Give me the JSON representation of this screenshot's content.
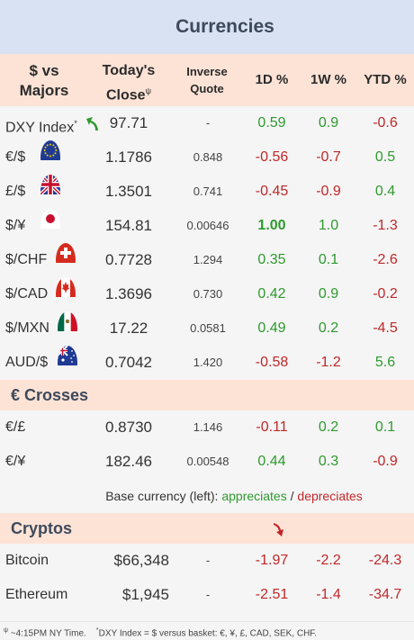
{
  "title": "Currencies",
  "header": {
    "majors_line1": "$ vs",
    "majors_line2": "Majors",
    "close_line1": "Today's",
    "close_line2": "Close",
    "close_sup": "ψ",
    "inverse_line1": "Inverse",
    "inverse_line2": "Quote",
    "d1": "1D %",
    "w1": "1W %",
    "ytd": "YTD %"
  },
  "majors": [
    {
      "label": "DXY Index",
      "sup": "*",
      "icon": "trend-up-arrow-icon",
      "close": "97.71",
      "inverse": "-",
      "d1": "0.59",
      "w1": "0.9",
      "ytd": "-0.6",
      "d1_dir": "pos",
      "w1_dir": "pos",
      "ytd_dir": "neg"
    },
    {
      "label": "€/$",
      "icon": "eu-flag-icon",
      "close": "1.1786",
      "inverse": "0.848",
      "d1": "-0.56",
      "w1": "-0.7",
      "ytd": "0.5",
      "d1_dir": "neg",
      "w1_dir": "neg",
      "ytd_dir": "pos"
    },
    {
      "label": "£/$",
      "icon": "uk-flag-icon",
      "close": "1.3501",
      "inverse": "0.741",
      "d1": "-0.45",
      "w1": "-0.9",
      "ytd": "0.4",
      "d1_dir": "neg",
      "w1_dir": "neg",
      "ytd_dir": "pos"
    },
    {
      "label": "$/¥",
      "icon": "japan-flag-icon",
      "close": "154.81",
      "inverse": "0.00646",
      "d1": "1.00",
      "w1": "1.0",
      "ytd": "-1.3",
      "d1_dir": "pos",
      "w1_dir": "pos",
      "ytd_dir": "neg"
    },
    {
      "label": "$/CHF",
      "icon": "swiss-flag-icon",
      "close": "0.7728",
      "inverse": "1.294",
      "d1": "0.35",
      "w1": "0.1",
      "ytd": "-2.6",
      "d1_dir": "pos",
      "w1_dir": "pos",
      "ytd_dir": "neg"
    },
    {
      "label": "$/CAD",
      "icon": "canada-flag-icon",
      "close": "1.3696",
      "inverse": "0.730",
      "d1": "0.42",
      "w1": "0.9",
      "ytd": "-0.2",
      "d1_dir": "pos",
      "w1_dir": "pos",
      "ytd_dir": "neg"
    },
    {
      "label": "$/MXN",
      "icon": "mexico-flag-icon",
      "close": "17.22",
      "inverse": "0.0581",
      "d1": "0.49",
      "w1": "0.2",
      "ytd": "-4.5",
      "d1_dir": "pos",
      "w1_dir": "pos",
      "ytd_dir": "neg"
    },
    {
      "label": "AUD/$",
      "icon": "australia-flag-icon",
      "close": "0.7042",
      "inverse": "1.420",
      "d1": "-0.58",
      "w1": "-1.2",
      "ytd": "5.6",
      "d1_dir": "neg",
      "w1_dir": "neg",
      "ytd_dir": "pos"
    }
  ],
  "crosses_title": "€ Crosses",
  "crosses": [
    {
      "label": "€/£",
      "close": "0.8730",
      "inverse": "1.146",
      "d1": "-0.11",
      "w1": "0.2",
      "ytd": "0.1",
      "d1_dir": "neg",
      "w1_dir": "pos",
      "ytd_dir": "pos"
    },
    {
      "label": "€/¥",
      "close": "182.46",
      "inverse": "0.00548",
      "d1": "0.44",
      "w1": "0.3",
      "ytd": "-0.9",
      "d1_dir": "pos",
      "w1_dir": "pos",
      "ytd_dir": "neg"
    }
  ],
  "legend": {
    "prefix": "Base currency (left): ",
    "up": "appreciates",
    "sep": " / ",
    "down": "depreciates"
  },
  "cryptos_title": "Cryptos",
  "cryptos_icon": "trend-down-arrow-icon",
  "cryptos": [
    {
      "label": "Bitcoin",
      "close": "$66,348",
      "inverse": "-",
      "d1": "-1.97",
      "w1": "-2.2",
      "ytd": "-24.3",
      "d1_dir": "neg",
      "w1_dir": "neg",
      "ytd_dir": "neg"
    },
    {
      "label": "Ethereum",
      "close": "$1,945",
      "inverse": "-",
      "d1": "-2.51",
      "w1": "-1.4",
      "ytd": "-34.7",
      "d1_dir": "neg",
      "w1_dir": "neg",
      "ytd_dir": "neg"
    }
  ],
  "footer": {
    "time_sup": "ψ",
    "time_note": " ~4:15PM NY Time.",
    "dxy_sup": "*",
    "dxy_note": "DXY Index = $ versus basket: €, ¥, £, CAD, SEK, CHF."
  },
  "colors": {
    "positive": "#2e9a2e",
    "negative": "#c0282a",
    "title_bg": "#d9e2f2",
    "header_bg": "#fde3d6"
  }
}
